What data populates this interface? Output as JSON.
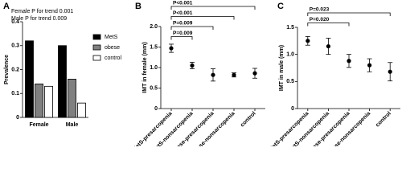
{
  "chart_data": [
    {
      "type": "bar",
      "panel": "A",
      "annotations": [
        "Female P for trend 0.001",
        "Male P for trend 0.009"
      ],
      "ylabel": "Prevalence",
      "categories": [
        "Female",
        "Male"
      ],
      "series": [
        {
          "name": "MetS",
          "color": "#000000",
          "values": [
            0.32,
            0.3
          ]
        },
        {
          "name": "obese",
          "color": "#808080",
          "values": [
            0.14,
            0.16
          ]
        },
        {
          "name": "control",
          "color": "#ffffff",
          "values": [
            0.13,
            0.06
          ]
        }
      ],
      "ylim": [
        0,
        0.4
      ],
      "yticks": [
        0,
        0.1,
        0.2,
        0.3,
        0.4
      ]
    },
    {
      "type": "errorbar",
      "panel": "B",
      "ylabel": "IMT in female (mm)",
      "categories": [
        "MetS-presarcopenia",
        "MetS-nonsarcopenia",
        "Obese-presarcopenia",
        "Obese-nonsarcopenia",
        "control"
      ],
      "values": [
        1.47,
        1.05,
        0.82,
        0.82,
        0.86
      ],
      "errors": [
        0.1,
        0.08,
        0.15,
        0.05,
        0.12
      ],
      "color": "#000000",
      "ylim": [
        0,
        2
      ],
      "yticks": [
        0,
        0.5,
        {
          "value": 1,
          "label": "1.0"
        },
        1.5,
        {
          "value": 2,
          "label": "2.0"
        }
      ],
      "comparisons": [
        {
          "label": "P<0.001",
          "from": 0,
          "to": 4
        },
        {
          "label": "P<0.001",
          "from": 0,
          "to": 3
        },
        {
          "label": "P=0.009",
          "from": 0,
          "to": 2
        },
        {
          "label": "P=0.009",
          "from": 0,
          "to": 1
        }
      ]
    },
    {
      "type": "errorbar",
      "panel": "C",
      "ylabel": "IMT in male (mm)",
      "categories": [
        "MetS-presarcopenia",
        "MetS-nonsarcopenia",
        "Obese-presarcopenia",
        "Obese-nonsarcopenia",
        "control"
      ],
      "values": [
        1.25,
        1.15,
        0.88,
        0.8,
        0.68
      ],
      "errors": [
        0.08,
        0.15,
        0.12,
        0.12,
        0.17
      ],
      "color": "#000000",
      "ylim": [
        0,
        1.5
      ],
      "yticks": [
        0,
        0.5,
        {
          "value": 1,
          "label": "1.0"
        },
        1.5
      ],
      "comparisons": [
        {
          "label": "P=0.023",
          "from": 0,
          "to": 4
        },
        {
          "label": "P=0.020",
          "from": 0,
          "to": 2
        }
      ]
    }
  ]
}
